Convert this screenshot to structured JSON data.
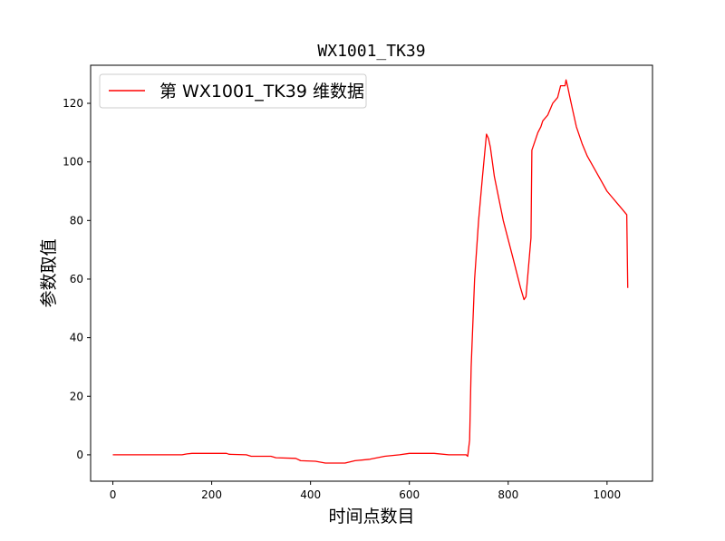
{
  "chart_data": {
    "type": "line",
    "title": "WX1001_TK39",
    "xlabel": "时间点数目",
    "ylabel": "参数取值",
    "xlim": [
      -45,
      1092
    ],
    "ylim": [
      -9,
      133
    ],
    "xticks": [
      0,
      200,
      400,
      600,
      800,
      1000
    ],
    "yticks": [
      0,
      20,
      40,
      60,
      80,
      100,
      120
    ],
    "grid": false,
    "legend_position": "top-left",
    "series": [
      {
        "name": "第 WX1001_TK39 维数据",
        "color": "#ff0000",
        "points": [
          [
            0,
            0.0
          ],
          [
            140,
            0.0
          ],
          [
            150,
            0.3
          ],
          [
            160,
            0.5
          ],
          [
            200,
            0.5
          ],
          [
            230,
            0.5
          ],
          [
            235,
            0.2
          ],
          [
            270,
            0.0
          ],
          [
            280,
            -0.5
          ],
          [
            320,
            -0.5
          ],
          [
            330,
            -1.0
          ],
          [
            370,
            -1.2
          ],
          [
            380,
            -2.0
          ],
          [
            410,
            -2.2
          ],
          [
            430,
            -2.8
          ],
          [
            470,
            -2.8
          ],
          [
            490,
            -2.0
          ],
          [
            520,
            -1.5
          ],
          [
            550,
            -0.5
          ],
          [
            580,
            0.0
          ],
          [
            600,
            0.5
          ],
          [
            650,
            0.5
          ],
          [
            680,
            0.0
          ],
          [
            715,
            0.0
          ],
          [
            718,
            -0.5
          ],
          [
            722,
            5.0
          ],
          [
            725,
            30.0
          ],
          [
            732,
            60.0
          ],
          [
            740,
            80.0
          ],
          [
            748,
            95.0
          ],
          [
            756,
            109.5
          ],
          [
            760,
            108.0
          ],
          [
            764,
            105.0
          ],
          [
            772,
            95.0
          ],
          [
            790,
            80.0
          ],
          [
            810,
            67.0
          ],
          [
            825,
            57.0
          ],
          [
            832,
            53.0
          ],
          [
            836,
            54.0
          ],
          [
            840,
            62.0
          ],
          [
            844,
            70.0
          ],
          [
            846,
            74.0
          ],
          [
            848,
            104.0
          ],
          [
            852,
            106.0
          ],
          [
            856,
            108.0
          ],
          [
            860,
            110.0
          ],
          [
            866,
            112.0
          ],
          [
            870,
            114.0
          ],
          [
            880,
            116.0
          ],
          [
            890,
            120.0
          ],
          [
            900,
            122.0
          ],
          [
            906,
            126.0
          ],
          [
            915,
            126.0
          ],
          [
            917,
            128.0
          ],
          [
            920,
            126.0
          ],
          [
            925,
            122.0
          ],
          [
            930,
            118.0
          ],
          [
            938,
            112.0
          ],
          [
            950,
            106.0
          ],
          [
            960,
            102.0
          ],
          [
            970,
            99.0
          ],
          [
            980,
            96.0
          ],
          [
            990,
            93.0
          ],
          [
            1000,
            90.0
          ],
          [
            1010,
            88.0
          ],
          [
            1020,
            86.0
          ],
          [
            1030,
            84.0
          ],
          [
            1040,
            82.0
          ],
          [
            1042,
            57.0
          ]
        ]
      }
    ]
  }
}
